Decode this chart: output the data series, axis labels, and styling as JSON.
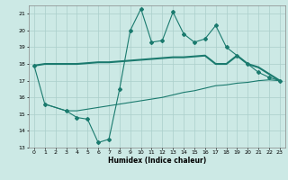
{
  "title": "",
  "xlabel": "Humidex (Indice chaleur)",
  "ylabel": "",
  "bg_color": "#cce9e5",
  "grid_color": "#aacfcb",
  "line_color": "#1a7a6e",
  "xlim": [
    -0.5,
    23.5
  ],
  "ylim": [
    13,
    21.5
  ],
  "yticks": [
    13,
    14,
    15,
    16,
    17,
    18,
    19,
    20,
    21
  ],
  "xticks": [
    0,
    1,
    2,
    3,
    4,
    5,
    6,
    7,
    8,
    9,
    10,
    11,
    12,
    13,
    14,
    15,
    16,
    17,
    18,
    19,
    20,
    21,
    22,
    23
  ],
  "line1_x": [
    0,
    1,
    3,
    4,
    5,
    6,
    7,
    8,
    9,
    10,
    11,
    12,
    13,
    14,
    15,
    16,
    17,
    18,
    19,
    20,
    21,
    22,
    23
  ],
  "line1_y": [
    17.9,
    15.6,
    15.2,
    14.8,
    14.7,
    13.3,
    13.5,
    16.5,
    20.0,
    21.3,
    19.3,
    19.4,
    21.1,
    19.8,
    19.3,
    19.5,
    20.3,
    19.0,
    18.5,
    18.0,
    17.5,
    17.2,
    17.0
  ],
  "line2_x": [
    0,
    1,
    2,
    3,
    4,
    5,
    6,
    7,
    8,
    9,
    10,
    11,
    12,
    13,
    14,
    15,
    16,
    17,
    18,
    19,
    20,
    21,
    22,
    23
  ],
  "line2_y": [
    17.9,
    18.0,
    18.0,
    18.0,
    18.0,
    18.05,
    18.1,
    18.1,
    18.15,
    18.2,
    18.25,
    18.3,
    18.35,
    18.4,
    18.4,
    18.45,
    18.5,
    18.0,
    18.0,
    18.5,
    18.0,
    17.8,
    17.4,
    17.0
  ],
  "line3_x": [
    1,
    3,
    4,
    5,
    6,
    7,
    8,
    9,
    10,
    11,
    12,
    13,
    14,
    15,
    16,
    17,
    18,
    19,
    20,
    21,
    22,
    23
  ],
  "line3_y": [
    15.6,
    15.2,
    15.2,
    15.3,
    15.4,
    15.5,
    15.6,
    15.7,
    15.8,
    15.9,
    16.0,
    16.15,
    16.3,
    16.4,
    16.55,
    16.7,
    16.75,
    16.85,
    16.9,
    17.0,
    17.05,
    17.0
  ]
}
